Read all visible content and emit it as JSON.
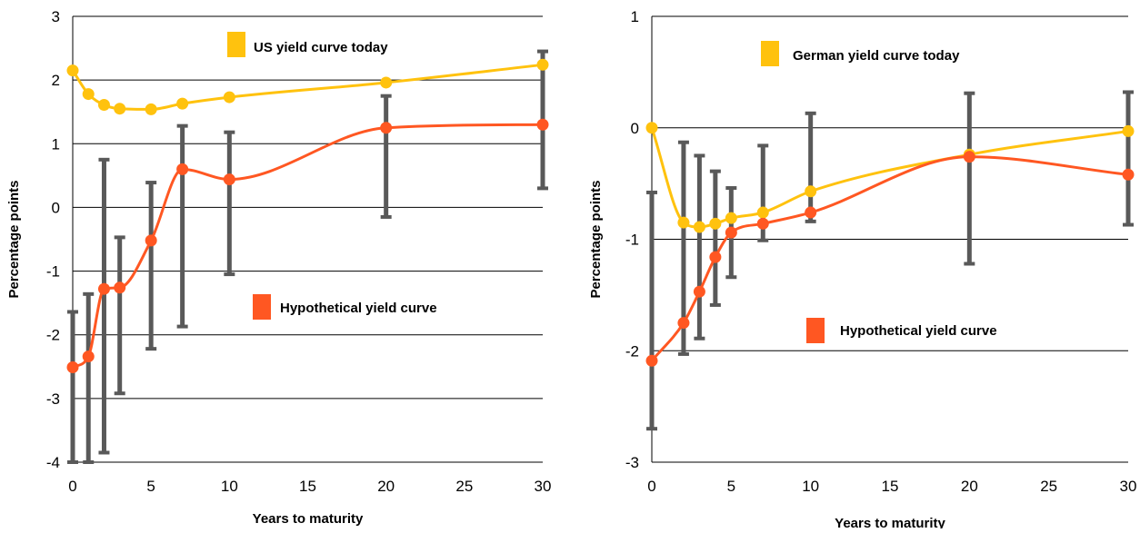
{
  "chart_data": [
    {
      "type": "line",
      "xlabel": "Years to maturity",
      "ylabel": "Percentage points",
      "xlim": [
        0,
        30
      ],
      "ylim": [
        -4,
        3
      ],
      "xticks": [
        "0",
        "5",
        "10",
        "15",
        "20",
        "25",
        "30"
      ],
      "yticks": [
        "-4",
        "-3",
        "-2",
        "-1",
        "0",
        "1",
        "2",
        "3"
      ],
      "grid": "horizontal",
      "series": [
        {
          "name": "US yield curve today",
          "color": "#FFC20E",
          "x": [
            0,
            1,
            2,
            3,
            5,
            7,
            10,
            20,
            30
          ],
          "y": [
            2.15,
            1.78,
            1.61,
            1.55,
            1.54,
            1.63,
            1.73,
            1.96,
            2.24
          ]
        },
        {
          "name": "Hypothetical yield curve",
          "color": "#FF5722",
          "x": [
            0,
            1,
            2,
            3,
            5,
            7,
            10,
            20,
            30
          ],
          "y": [
            -2.51,
            -2.34,
            -1.28,
            -1.26,
            -0.52,
            0.6,
            0.44,
            1.25,
            1.3
          ],
          "error_low": [
            -4.0,
            -4.0,
            -3.85,
            -2.92,
            -2.22,
            -1.87,
            -1.05,
            -0.15,
            0.3
          ],
          "error_high": [
            -1.64,
            -1.36,
            0.75,
            -0.47,
            0.39,
            1.28,
            1.18,
            1.75,
            2.45
          ]
        }
      ]
    },
    {
      "type": "line",
      "xlabel": "Years to maturity",
      "ylabel": "Percentage points",
      "xlim": [
        0,
        30
      ],
      "ylim": [
        -3,
        1
      ],
      "xticks": [
        "0",
        "5",
        "10",
        "15",
        "20",
        "25",
        "30"
      ],
      "yticks": [
        "-3",
        "-2",
        "-1",
        "0",
        "1"
      ],
      "grid": "horizontal",
      "series": [
        {
          "name": "German yield curve today",
          "color": "#FFC20E",
          "x": [
            0,
            2,
            3,
            4,
            5,
            7,
            10,
            20,
            30
          ],
          "y": [
            0.0,
            -0.85,
            -0.89,
            -0.86,
            -0.81,
            -0.76,
            -0.57,
            -0.24,
            -0.03
          ],
          "error_low": [
            -2.7,
            -2.03,
            -1.89,
            -1.59,
            -1.34,
            -1.01,
            -0.84,
            -1.22,
            -0.87
          ],
          "error_high": [
            -0.58,
            -0.13,
            -0.25,
            -0.39,
            -0.54,
            -0.16,
            0.13,
            0.31,
            0.32
          ]
        },
        {
          "name": "Hypothetical yield curve",
          "color": "#FF5722",
          "x": [
            0,
            2,
            3,
            4,
            5,
            7,
            10,
            20,
            30
          ],
          "y": [
            -2.09,
            -1.75,
            -1.47,
            -1.16,
            -0.94,
            -0.86,
            -0.76,
            -0.26,
            -0.42
          ]
        }
      ]
    }
  ]
}
